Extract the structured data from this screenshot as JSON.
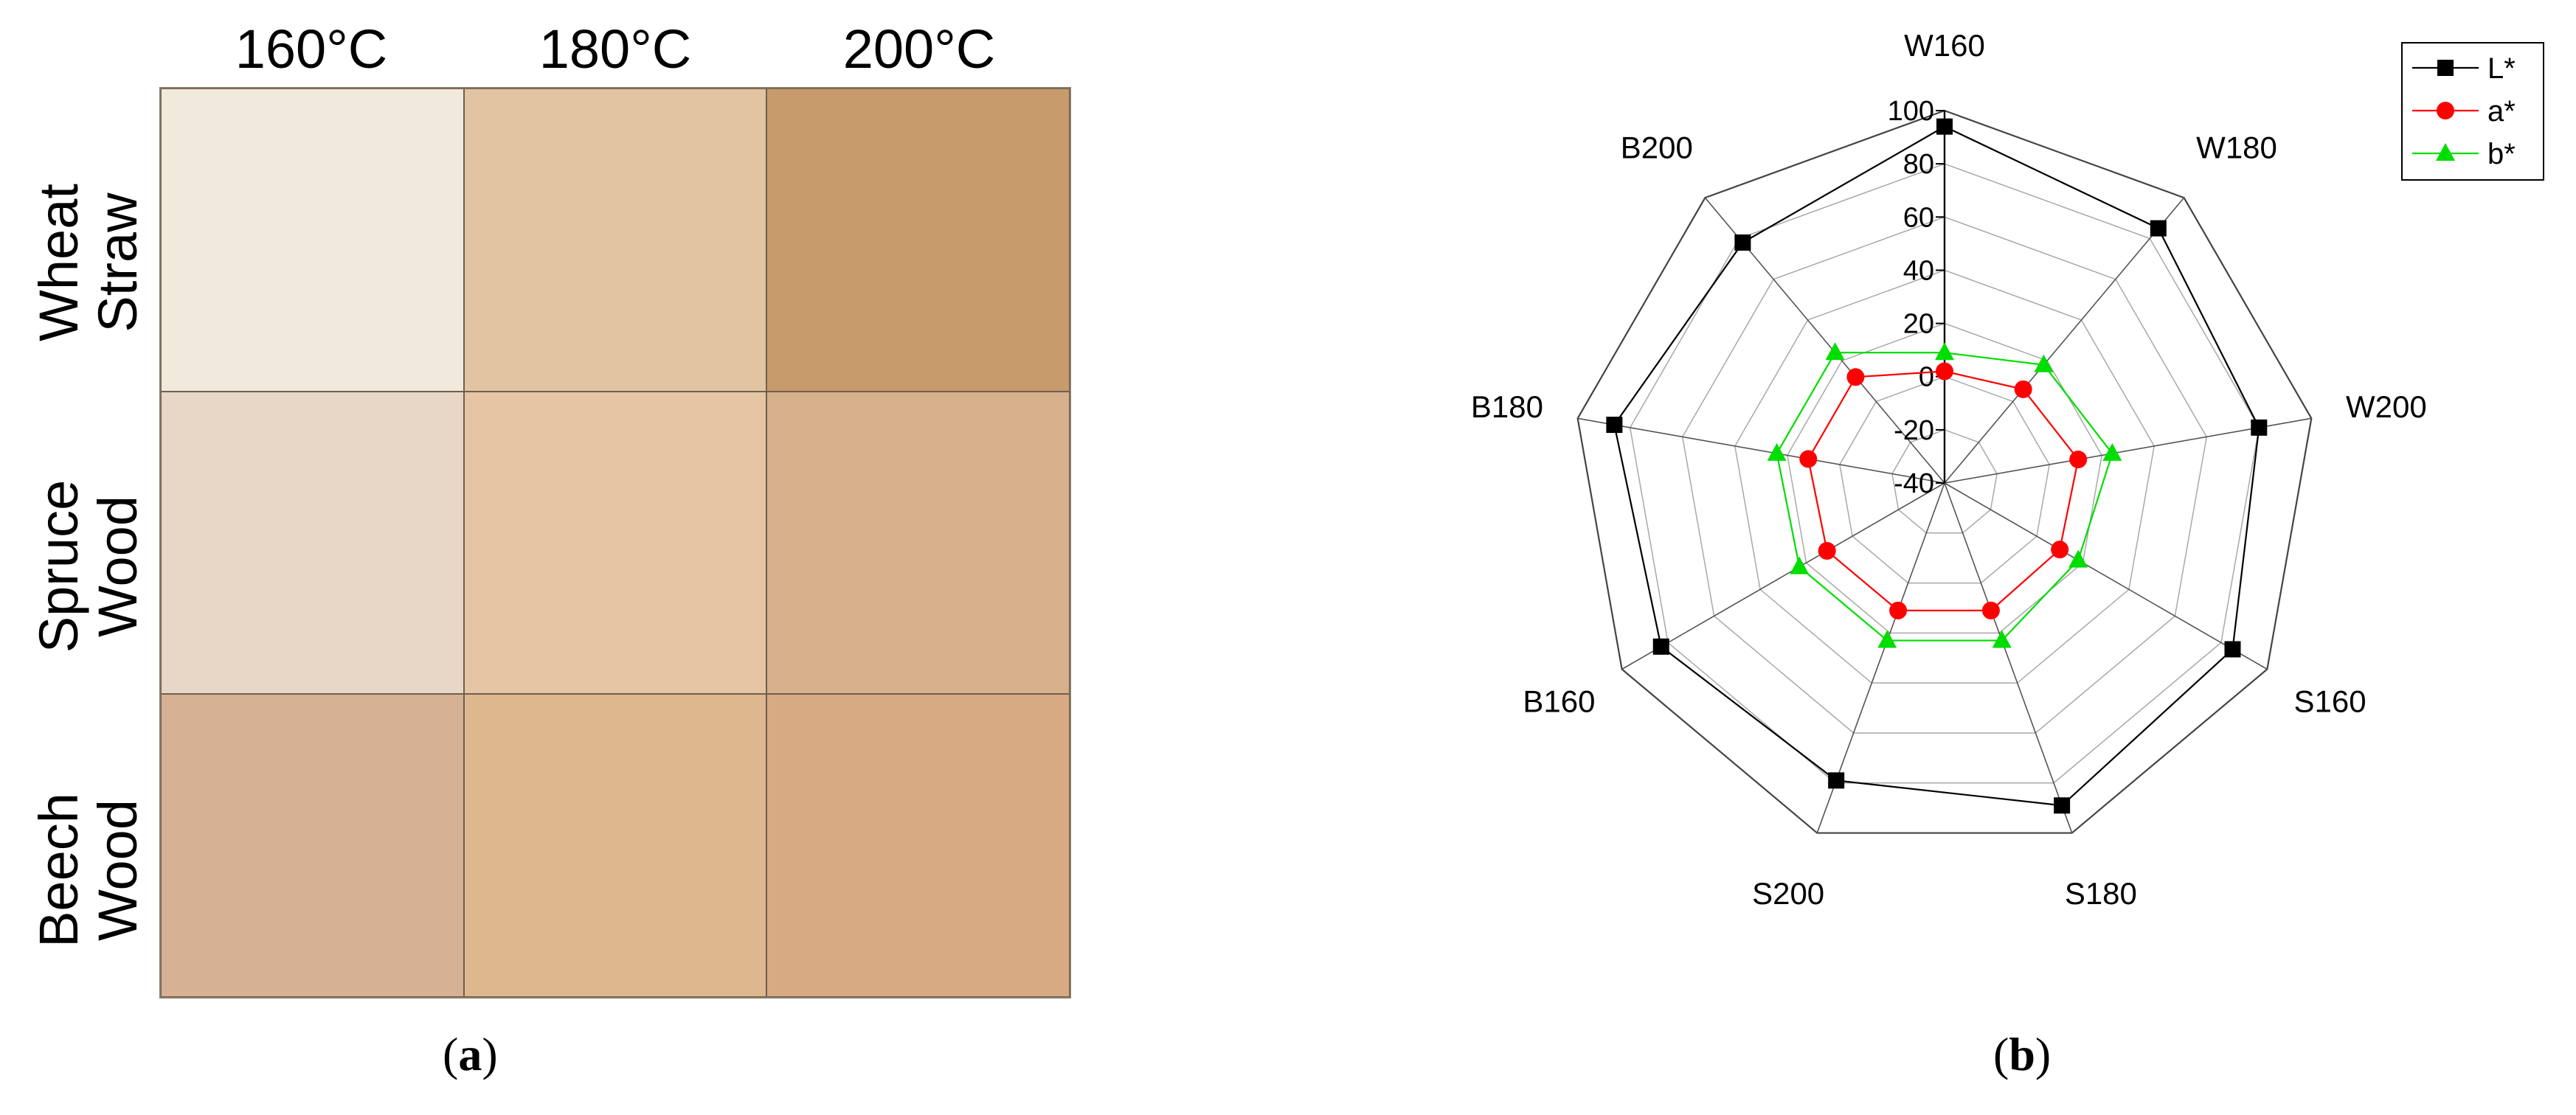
{
  "panel_a": {
    "columns": [
      "160°C",
      "180°C",
      "200°C"
    ],
    "rows": [
      {
        "label_line1": "Wheat",
        "label_line2": "Straw",
        "colors": [
          "#f1e9dc",
          "#e2c4a3",
          "#c79b6c"
        ]
      },
      {
        "label_line1": "Spruce",
        "label_line2": "Wood",
        "colors": [
          "#e8d6c6",
          "#e5c5a4",
          "#d7b08c"
        ]
      },
      {
        "label_line1": "Beech",
        "label_line2": "Wood",
        "colors": [
          "#d7b193",
          "#ddb88e",
          "#d7aa84"
        ]
      }
    ],
    "caption_open": "(",
    "caption_letter": "a",
    "caption_close": ")"
  },
  "panel_b": {
    "caption_open": "(",
    "caption_letter": "b",
    "caption_close": ")"
  },
  "chart_data": {
    "type": "radar",
    "categories": [
      "W160",
      "W180",
      "W200",
      "S160",
      "S180",
      "S200",
      "B160",
      "B180",
      "B200"
    ],
    "rlim": [
      -40,
      100
    ],
    "radial_ticks": [
      -40,
      -20,
      0,
      20,
      40,
      60,
      80,
      100
    ],
    "grid": true,
    "legend_position": "top-right",
    "series": [
      {
        "name": "L*",
        "color": "#000000",
        "marker": "square",
        "values": [
          94,
          85,
          80,
          85,
          89,
          79,
          83,
          86,
          78
        ]
      },
      {
        "name": "a*",
        "color": "#ff0000",
        "marker": "circle",
        "values": [
          2,
          6,
          11,
          10,
          11,
          11,
          11,
          12,
          12
        ]
      },
      {
        "name": "b*",
        "color": "#00dd00",
        "marker": "triangle",
        "values": [
          9,
          18,
          24,
          18,
          23,
          23,
          23,
          24,
          24
        ]
      }
    ]
  }
}
